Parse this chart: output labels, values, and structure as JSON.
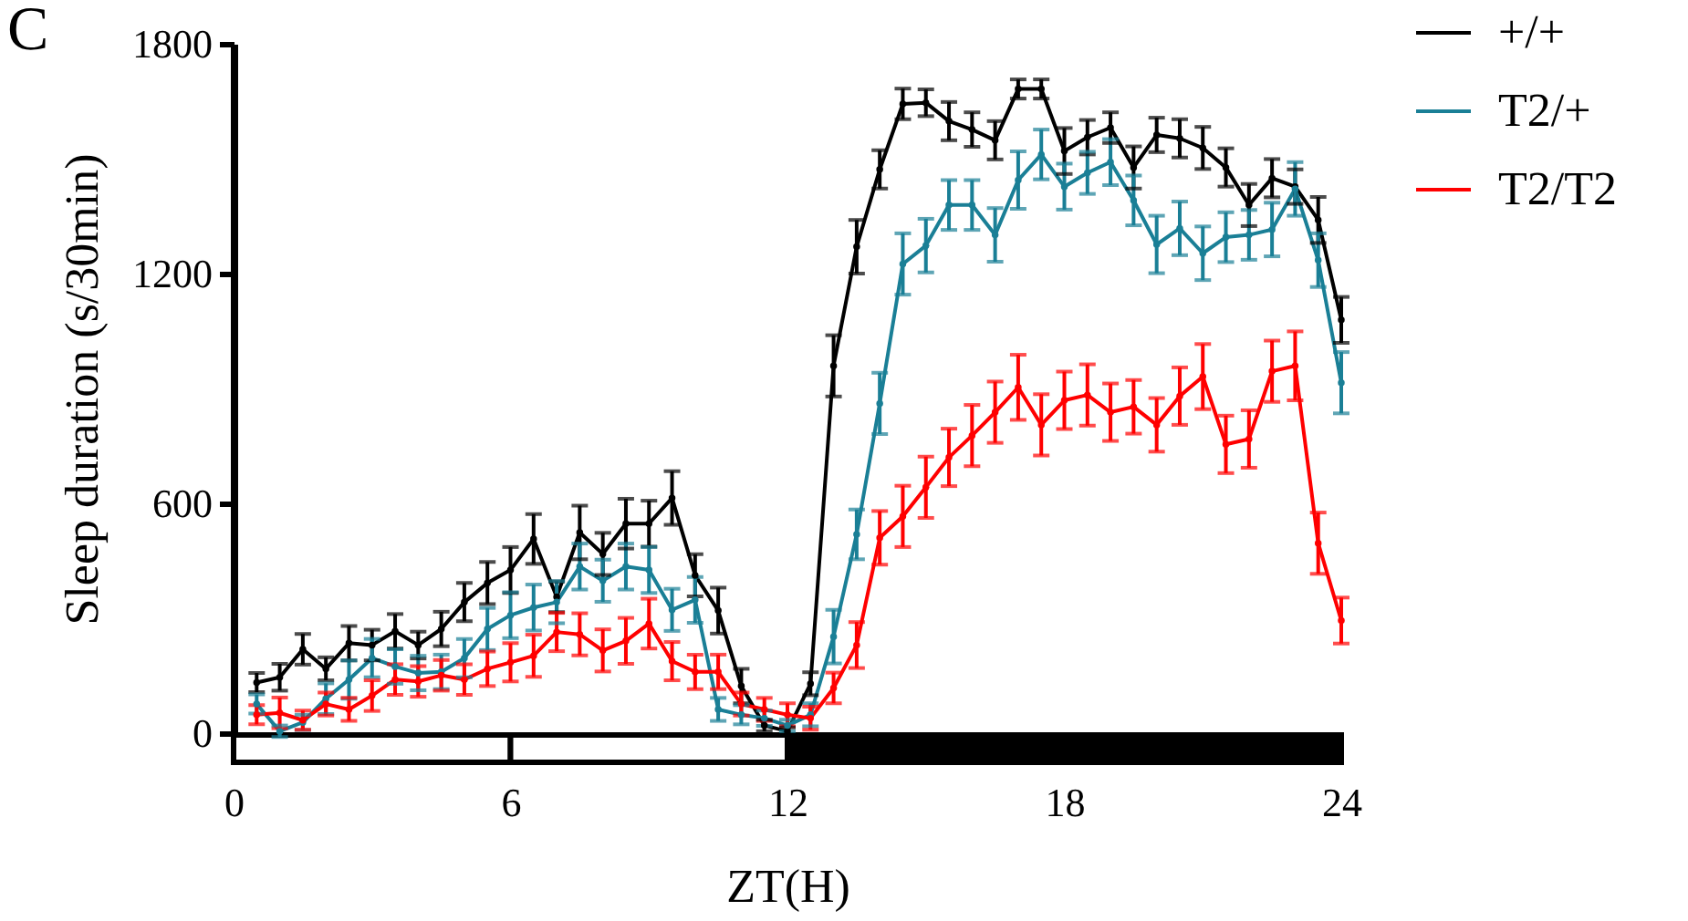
{
  "chart_data": {
    "type": "line",
    "xlabel": "ZT(H)",
    "ylabel": "Sleep duration (s/30min)",
    "annotations": [
      "C"
    ],
    "x": [
      0.5,
      1,
      1.5,
      2,
      2.5,
      3,
      3.5,
      4,
      4.5,
      5,
      5.5,
      6,
      6.5,
      7,
      7.5,
      8,
      8.5,
      9,
      9.5,
      10,
      10.5,
      11,
      11.5,
      12,
      12.5,
      13,
      13.5,
      14,
      14.5,
      15,
      15.5,
      16,
      16.5,
      17,
      17.5,
      18,
      18.5,
      19,
      19.5,
      20,
      20.5,
      21,
      21.5,
      22,
      22.5,
      23,
      23.5,
      24
    ],
    "series": [
      {
        "name": "+/+",
        "color": "#000000",
        "values": [
          132,
          146,
          219,
          168,
          235,
          230,
          266,
          230,
          272,
          342,
          392,
          426,
          507,
          356,
          524,
          468,
          547,
          547,
          614,
          412,
          320,
          123,
          20,
          5,
          129,
          959,
          1270,
          1472,
          1643,
          1646,
          1598,
          1576,
          1548,
          1682,
          1682,
          1520,
          1556,
          1581,
          1477,
          1562,
          1553,
          1528,
          1477,
          1379,
          1449,
          1427,
          1340,
          1079
        ],
        "errors": [
          25,
          35,
          40,
          30,
          45,
          40,
          45,
          35,
          45,
          50,
          55,
          60,
          65,
          40,
          70,
          55,
          65,
          60,
          70,
          55,
          60,
          45,
          15,
          10,
          30,
          80,
          70,
          50,
          40,
          35,
          50,
          45,
          50,
          25,
          25,
          60,
          45,
          40,
          55,
          45,
          50,
          55,
          50,
          55,
          50,
          45,
          60,
          60
        ]
      },
      {
        "name": "T2/+",
        "color": "#1a7f96",
        "values": [
          76,
          5,
          28,
          90,
          140,
          196,
          174,
          157,
          160,
          196,
          272,
          308,
          328,
          342,
          435,
          398,
          435,
          426,
          322,
          348,
          62,
          48,
          39,
          20,
          48,
          252,
          519,
          861,
          1225,
          1273,
          1379,
          1379,
          1301,
          1444,
          1511,
          1427,
          1463,
          1491,
          1391,
          1276,
          1318,
          1253,
          1295,
          1301,
          1315,
          1421,
          1235,
          915
        ],
        "errors": [
          25,
          15,
          20,
          40,
          50,
          50,
          45,
          45,
          45,
          50,
          55,
          60,
          60,
          55,
          60,
          55,
          60,
          60,
          55,
          60,
          30,
          25,
          20,
          15,
          30,
          70,
          65,
          80,
          80,
          70,
          65,
          65,
          70,
          75,
          65,
          60,
          55,
          60,
          65,
          75,
          70,
          70,
          65,
          65,
          70,
          70,
          70,
          80
        ]
      },
      {
        "name": "T2/T2",
        "color": "#ff0000",
        "values": [
          48,
          53,
          34,
          76,
          62,
          98,
          140,
          135,
          151,
          140,
          168,
          185,
          202,
          264,
          258,
          216,
          241,
          286,
          188,
          160,
          160,
          76,
          62,
          48,
          39,
          118,
          230,
          510,
          566,
          642,
          720,
          777,
          838,
          903,
          805,
          869,
          883,
          838,
          852,
          805,
          880,
          931,
          754,
          768,
          945,
          959,
          496,
          294
        ],
        "errors": [
          25,
          40,
          25,
          30,
          30,
          40,
          40,
          40,
          40,
          40,
          45,
          50,
          55,
          50,
          55,
          55,
          60,
          65,
          50,
          45,
          45,
          30,
          30,
          30,
          30,
          40,
          60,
          70,
          80,
          80,
          75,
          80,
          80,
          85,
          80,
          75,
          80,
          75,
          70,
          70,
          75,
          85,
          75,
          75,
          80,
          90,
          80,
          60
        ]
      }
    ],
    "xlim": [
      0,
      24
    ],
    "xticks": [
      0,
      6,
      12,
      18,
      24
    ],
    "ylim": [
      0,
      1800
    ],
    "yticks": [
      0,
      600,
      1200,
      1800
    ],
    "grid": false,
    "legend": "top right",
    "marker": "circle",
    "line_style": "solid"
  }
}
